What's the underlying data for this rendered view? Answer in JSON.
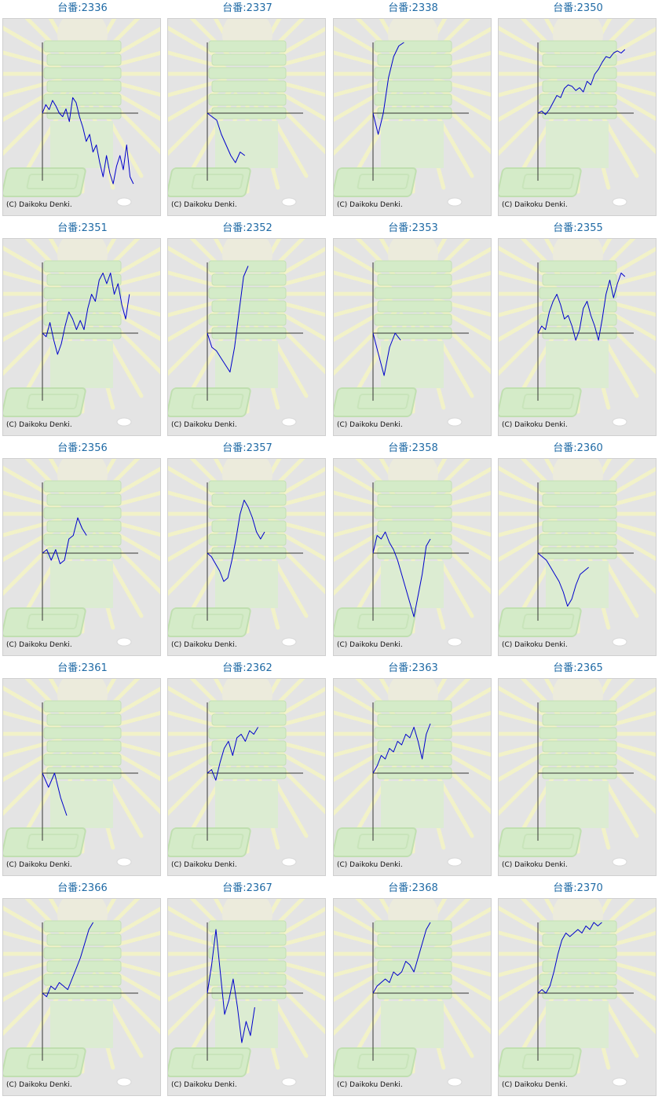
{
  "copyright": "(C) Daikoku Denki.",
  "colors": {
    "line": "#0000cc",
    "label": "#1f6aa5",
    "axis": "#333333",
    "panel_bg": "#e4e4e4"
  },
  "chart_data": [
    {
      "type": "line",
      "label": "台番:2336",
      "y": [
        0,
        0.12,
        0.05,
        0.18,
        0.1,
        0.0,
        -0.05,
        0.06,
        -0.12,
        0.22,
        0.15,
        -0.05,
        -0.2,
        -0.4,
        -0.3,
        -0.55,
        -0.45,
        -0.7,
        -0.9,
        -0.6,
        -0.85,
        -1.0,
        -0.75,
        -0.6,
        -0.8,
        -0.45,
        -0.9,
        -1.0
      ]
    },
    {
      "type": "line",
      "label": "台番:2337",
      "y": [
        0,
        -0.05,
        -0.1,
        -0.3,
        -0.45,
        -0.6,
        -0.7,
        -0.55,
        -0.6
      ]
    },
    {
      "type": "line",
      "label": "台番:2338",
      "y": [
        0,
        -0.3,
        0.0,
        0.5,
        0.8,
        0.95,
        1.0
      ]
    },
    {
      "type": "line",
      "label": "台番:2350",
      "y": [
        0,
        0.03,
        -0.02,
        0.05,
        0.15,
        0.25,
        0.22,
        0.35,
        0.4,
        0.38,
        0.32,
        0.36,
        0.3,
        0.45,
        0.4,
        0.55,
        0.62,
        0.72,
        0.8,
        0.78,
        0.85,
        0.88,
        0.85,
        0.9
      ]
    },
    {
      "type": "line",
      "label": "台番:2351",
      "y": [
        0,
        -0.05,
        0.15,
        -0.1,
        -0.3,
        -0.15,
        0.1,
        0.3,
        0.2,
        0.05,
        0.18,
        0.05,
        0.35,
        0.55,
        0.45,
        0.75,
        0.85,
        0.7,
        0.85,
        0.55,
        0.7,
        0.4,
        0.2,
        0.55
      ]
    },
    {
      "type": "line",
      "label": "台番:2352",
      "y": [
        0,
        -0.2,
        -0.25,
        -0.35,
        -0.45,
        -0.55,
        -0.2,
        0.3,
        0.8,
        0.95
      ]
    },
    {
      "type": "line",
      "label": "台番:2353",
      "y": [
        0,
        -0.3,
        -0.6,
        -0.2,
        0.0,
        -0.1
      ]
    },
    {
      "type": "line",
      "label": "台番:2355",
      "y": [
        0,
        0.1,
        0.05,
        0.3,
        0.45,
        0.55,
        0.4,
        0.2,
        0.25,
        0.1,
        -0.1,
        0.05,
        0.35,
        0.45,
        0.25,
        0.1,
        -0.1,
        0.2,
        0.55,
        0.75,
        0.5,
        0.7,
        0.85,
        0.8
      ]
    },
    {
      "type": "line",
      "label": "台番:2356",
      "y": [
        0,
        0.05,
        -0.1,
        0.05,
        -0.15,
        -0.1,
        0.2,
        0.25,
        0.5,
        0.35,
        0.25
      ]
    },
    {
      "type": "line",
      "label": "台番:2357",
      "y": [
        0,
        -0.05,
        -0.15,
        -0.25,
        -0.4,
        -0.35,
        -0.1,
        0.2,
        0.55,
        0.75,
        0.65,
        0.5,
        0.3,
        0.2,
        0.3
      ]
    },
    {
      "type": "line",
      "label": "台番:2358",
      "y": [
        0,
        0.25,
        0.2,
        0.3,
        0.15,
        0.05,
        -0.1,
        -0.3,
        -0.5,
        -0.7,
        -0.9,
        -0.6,
        -0.3,
        0.1,
        0.2
      ]
    },
    {
      "type": "line",
      "label": "台番:2360",
      "y": [
        0,
        -0.05,
        -0.1,
        -0.2,
        -0.3,
        -0.4,
        -0.55,
        -0.75,
        -0.65,
        -0.45,
        -0.3,
        -0.25,
        -0.2
      ]
    },
    {
      "type": "line",
      "label": "台番:2361",
      "y": [
        0,
        -0.2,
        0.0,
        -0.35,
        -0.6
      ]
    },
    {
      "type": "line",
      "label": "台番:2362",
      "y": [
        0,
        0.05,
        -0.1,
        0.15,
        0.35,
        0.45,
        0.25,
        0.5,
        0.55,
        0.45,
        0.6,
        0.55,
        0.65
      ]
    },
    {
      "type": "line",
      "label": "台番:2363",
      "y": [
        0,
        0.1,
        0.25,
        0.2,
        0.35,
        0.3,
        0.45,
        0.4,
        0.55,
        0.5,
        0.65,
        0.45,
        0.2,
        0.55,
        0.7
      ]
    },
    {
      "type": "line",
      "label": "台番:2365",
      "y": []
    },
    {
      "type": "line",
      "label": "台番:2366",
      "y": [
        0,
        -0.05,
        0.1,
        0.05,
        0.15,
        0.1,
        0.05,
        0.2,
        0.35,
        0.5,
        0.7,
        0.9,
        1.0
      ]
    },
    {
      "type": "line",
      "label": "台番:2367",
      "y": [
        0,
        0.4,
        0.9,
        0.3,
        -0.3,
        -0.1,
        0.2,
        -0.2,
        -0.7,
        -0.4,
        -0.6,
        -0.2
      ]
    },
    {
      "type": "line",
      "label": "台番:2368",
      "y": [
        0,
        0.1,
        0.15,
        0.2,
        0.15,
        0.3,
        0.25,
        0.3,
        0.45,
        0.4,
        0.3,
        0.5,
        0.7,
        0.9,
        1.0
      ]
    },
    {
      "type": "line",
      "label": "台番:2370",
      "y": [
        0,
        0.05,
        0.0,
        0.1,
        0.3,
        0.55,
        0.75,
        0.85,
        0.8,
        0.85,
        0.9,
        0.85,
        0.95,
        0.9,
        1.0,
        0.95,
        1.0
      ]
    }
  ]
}
